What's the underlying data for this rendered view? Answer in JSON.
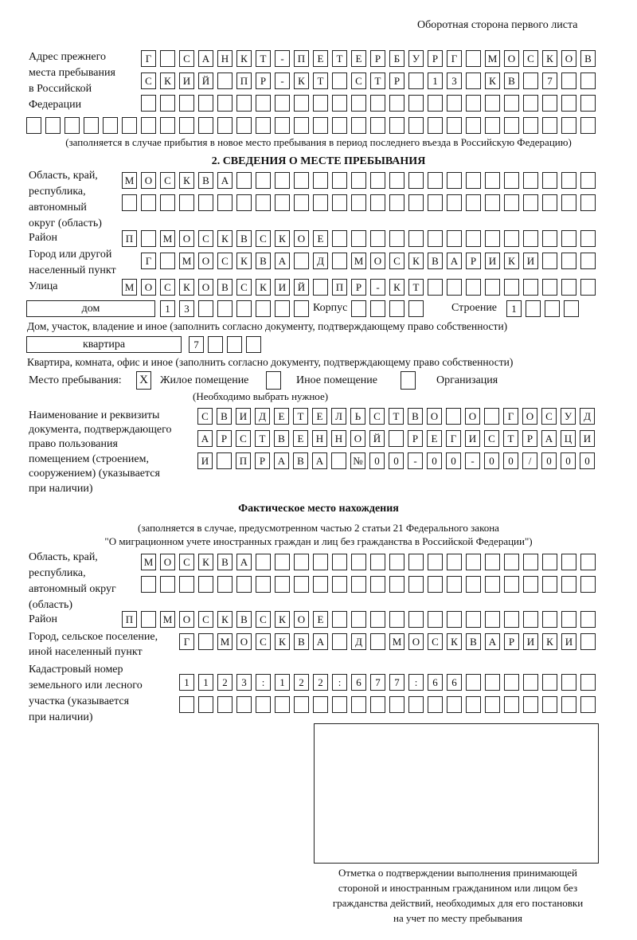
{
  "header": "Оборотная сторона первого листа",
  "prev_address": {
    "label": [
      "Адрес прежнего",
      "места пребывания",
      "в Российской",
      "Федерации"
    ],
    "rows": [
      [
        "Г",
        "",
        "С",
        "А",
        "Н",
        "К",
        "Т",
        "-",
        "П",
        "Е",
        "Т",
        "Е",
        "Р",
        "Б",
        "У",
        "Р",
        "Г",
        "",
        "М",
        "О",
        "С",
        "К",
        "О",
        "В"
      ],
      [
        "С",
        "К",
        "И",
        "Й",
        "",
        "П",
        "Р",
        "-",
        "К",
        "Т",
        "",
        "С",
        "Т",
        "Р",
        "",
        "1",
        "3",
        "",
        "К",
        "В",
        "",
        "7",
        "",
        ""
      ],
      [
        "",
        "",
        "",
        "",
        "",
        "",
        "",
        "",
        "",
        "",
        "",
        "",
        "",
        "",
        "",
        "",
        "",
        "",
        "",
        "",
        "",
        "",
        "",
        ""
      ],
      [
        "",
        "",
        "",
        "",
        "",
        "",
        "",
        "",
        "",
        "",
        "",
        "",
        "",
        "",
        "",
        "",
        "",
        "",
        "",
        "",
        "",
        "",
        "",
        "",
        "",
        "",
        "",
        "",
        "",
        ""
      ]
    ],
    "note": "(заполняется в случае прибытия в новое место пребывания в период последнего въезда в Российскую Федерацию)"
  },
  "section2": {
    "title": "2. СВЕДЕНИЯ О МЕСТЕ ПРЕБЫВАНИЯ",
    "region_label": [
      "Область, край,",
      "республика,",
      "автономный",
      "округ (область)"
    ],
    "region_rows": [
      [
        "М",
        "О",
        "С",
        "К",
        "В",
        "А",
        "",
        "",
        "",
        "",
        "",
        "",
        "",
        "",
        "",
        "",
        "",
        "",
        "",
        "",
        "",
        "",
        "",
        "",
        ""
      ],
      [
        "",
        "",
        "",
        "",
        "",
        "",
        "",
        "",
        "",
        "",
        "",
        "",
        "",
        "",
        "",
        "",
        "",
        "",
        "",
        "",
        "",
        "",
        "",
        "",
        ""
      ]
    ],
    "district_label": "Район",
    "district_row": [
      "П",
      "",
      "М",
      "О",
      "С",
      "К",
      "В",
      "С",
      "К",
      "О",
      "Е",
      "",
      "",
      "",
      "",
      "",
      "",
      "",
      "",
      "",
      "",
      "",
      "",
      "",
      ""
    ],
    "city_label": [
      "Город или другой",
      "населенный пункт"
    ],
    "city_row": [
      "Г",
      "",
      "М",
      "О",
      "С",
      "К",
      "В",
      "А",
      "",
      "Д",
      "",
      "М",
      "О",
      "С",
      "К",
      "В",
      "А",
      "Р",
      "И",
      "К",
      "И",
      "",
      "",
      ""
    ],
    "street_label": "Улица",
    "street_row": [
      "М",
      "О",
      "С",
      "К",
      "О",
      "В",
      "С",
      "К",
      "И",
      "Й",
      "",
      "П",
      "Р",
      "-",
      "К",
      "Т",
      "",
      "",
      "",
      "",
      "",
      "",
      "",
      "",
      ""
    ],
    "house_type": "дом",
    "house_cells": [
      "1",
      "3",
      "",
      "",
      "",
      "",
      "",
      ""
    ],
    "korpus_label": "Корпус",
    "korpus_cells": [
      "",
      "",
      "",
      ""
    ],
    "building_label": "Строение",
    "building_cells": [
      "1",
      "",
      "",
      ""
    ],
    "house_note": "Дом, участок, владение и иное (заполнить согласно документу, подтверждающему право собственности)",
    "apt_type": "квартира",
    "apt_cells": [
      "7",
      "",
      "",
      ""
    ],
    "apt_note": "Квартира, комната, офис и иное (заполнить согласно документу, подтверждающему право собственности)",
    "place_label": "Место пребывания:",
    "place_options": [
      {
        "label": "Жилое помещение",
        "mark": "X"
      },
      {
        "label": "Иное помещение",
        "mark": ""
      },
      {
        "label": "Организация",
        "mark": ""
      }
    ],
    "place_note": "(Необходимо выбрать нужное)",
    "doc_label": [
      "Наименование и реквизиты",
      "документа, подтверждающего",
      "право пользования",
      "помещением (строением,",
      "сооружением) (указывается",
      "при наличии)"
    ],
    "doc_rows": [
      [
        "С",
        "В",
        "И",
        "Д",
        "Е",
        "Т",
        "Е",
        "Л",
        "Ь",
        "С",
        "Т",
        "В",
        "О",
        "",
        "О",
        "",
        "Г",
        "О",
        "С",
        "У",
        "Д"
      ],
      [
        "А",
        "Р",
        "С",
        "Т",
        "В",
        "Е",
        "Н",
        "Н",
        "О",
        "Й",
        "",
        "Р",
        "Е",
        "Г",
        "И",
        "С",
        "Т",
        "Р",
        "А",
        "Ц",
        "И"
      ],
      [
        "И",
        "",
        "П",
        "Р",
        "А",
        "В",
        "А",
        "",
        "№",
        "0",
        "0",
        "-",
        "0",
        "0",
        "-",
        "0",
        "0",
        "/",
        "0",
        "0",
        "0"
      ]
    ]
  },
  "actual": {
    "title": "Фактическое место нахождения",
    "note": [
      "(заполняется в случае, предусмотренном частью 2 статьи 21 Федерального закона",
      "\"О миграционном учете иностранных граждан и лиц без гражданства в Российской Федерации\")"
    ],
    "region_label": [
      "Область, край,",
      "республика,",
      "автономный округ",
      "(область)"
    ],
    "region_rows": [
      [
        "М",
        "О",
        "С",
        "К",
        "В",
        "А",
        "",
        "",
        "",
        "",
        "",
        "",
        "",
        "",
        "",
        "",
        "",
        "",
        "",
        "",
        "",
        "",
        "",
        ""
      ],
      [
        "",
        "",
        "",
        "",
        "",
        "",
        "",
        "",
        "",
        "",
        "",
        "",
        "",
        "",
        "",
        "",
        "",
        "",
        "",
        "",
        "",
        "",
        "",
        ""
      ]
    ],
    "district_label": "Район",
    "district_row": [
      "П",
      "",
      "М",
      "О",
      "С",
      "К",
      "В",
      "С",
      "К",
      "О",
      "Е",
      "",
      "",
      "",
      "",
      "",
      "",
      "",
      "",
      "",
      "",
      "",
      "",
      "",
      ""
    ],
    "city_label": [
      "Город, сельское поселение,",
      "иной населенный пункт"
    ],
    "city_row": [
      "Г",
      "",
      "М",
      "О",
      "С",
      "К",
      "В",
      "А",
      "",
      "Д",
      "",
      "М",
      "О",
      "С",
      "К",
      "В",
      "А",
      "Р",
      "И",
      "К",
      "И",
      ""
    ],
    "cadastral_label": [
      "Кадастровый номер",
      "земельного или лесного",
      "участка (указывается",
      "при наличии)"
    ],
    "cadastral_rows": [
      [
        "1",
        "1",
        "2",
        "3",
        ":",
        "1",
        "2",
        "2",
        ":",
        "6",
        "7",
        "7",
        ":",
        "6",
        "6",
        "",
        "",
        "",
        "",
        "",
        "",
        ""
      ],
      [
        "",
        "",
        "",
        "",
        "",
        "",
        "",
        "",
        "",
        "",
        "",
        "",
        "",
        "",
        "",
        "",
        "",
        "",
        "",
        "",
        "",
        ""
      ]
    ]
  },
  "stamp_caption": [
    "Отметка о подтверждении выполнения принимающей",
    "стороной и иностранным гражданином или лицом без",
    "гражданства действий, необходимых для его постановки",
    "на учет по месту пребывания"
  ]
}
